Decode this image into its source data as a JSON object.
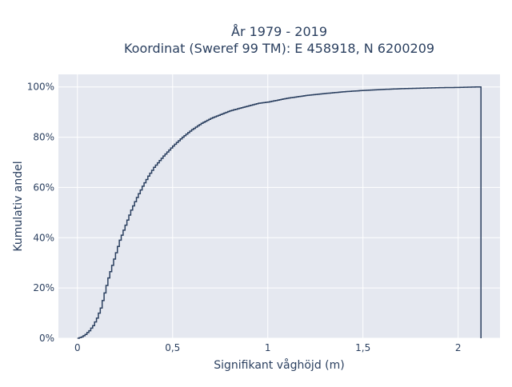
{
  "chart_data": {
    "type": "line",
    "line_shape": "step",
    "title_lines": [
      "År 1979 - 2019",
      "Koordinat (Sweref 99 TM): E 458918, N 6200209"
    ],
    "xlabel": "Signifikant våghöjd (m)",
    "ylabel": "Kumulativ andel",
    "xlim": [
      -0.1,
      2.22
    ],
    "ylim": [
      0,
      1.05
    ],
    "x_ticks": [
      0,
      0.5,
      1,
      1.5,
      2
    ],
    "x_tick_labels": [
      "0",
      "0,5",
      "1",
      "1,5",
      "2"
    ],
    "y_ticks": [
      0,
      0.2,
      0.4,
      0.6,
      0.8,
      1.0
    ],
    "y_tick_labels": [
      "0%",
      "20%",
      "40%",
      "60%",
      "80%",
      "100%"
    ],
    "grid": true,
    "background_color": "#e5e8f0",
    "line_color": "#2a3f5f",
    "series": [
      {
        "x": [
          0.0,
          0.02,
          0.04,
          0.06,
          0.08,
          0.1,
          0.12,
          0.14,
          0.16,
          0.18,
          0.2,
          0.22,
          0.25,
          0.28,
          0.31,
          0.34,
          0.37,
          0.4,
          0.45,
          0.5,
          0.55,
          0.6,
          0.65,
          0.7,
          0.75,
          0.8,
          0.85,
          0.9,
          0.95,
          1.0,
          1.1,
          1.2,
          1.3,
          1.4,
          1.5,
          1.6,
          1.7,
          1.8,
          1.9,
          2.0,
          2.05,
          2.1,
          2.12,
          2.12
        ],
        "y": [
          0.0,
          0.005,
          0.015,
          0.03,
          0.05,
          0.08,
          0.12,
          0.18,
          0.24,
          0.29,
          0.34,
          0.39,
          0.45,
          0.51,
          0.56,
          0.605,
          0.645,
          0.68,
          0.725,
          0.765,
          0.8,
          0.83,
          0.855,
          0.875,
          0.89,
          0.905,
          0.915,
          0.925,
          0.935,
          0.94,
          0.955,
          0.966,
          0.974,
          0.981,
          0.986,
          0.99,
          0.993,
          0.995,
          0.997,
          0.998,
          0.999,
          1.0,
          1.0,
          0.0
        ]
      }
    ]
  }
}
